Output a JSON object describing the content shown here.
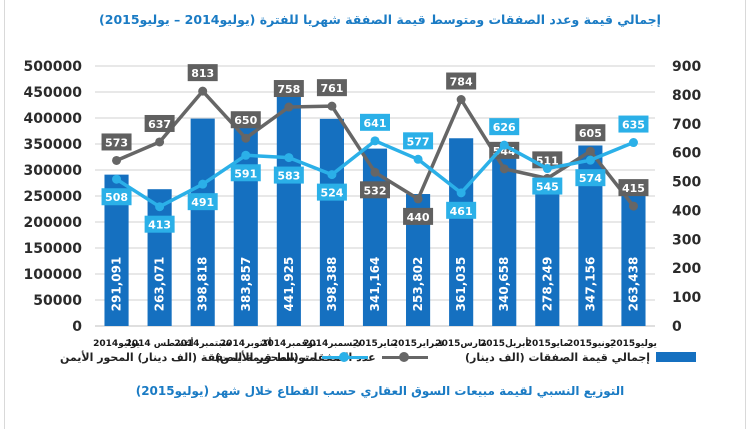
{
  "title": "إجمالي قيمة وعدد الصفقات ومتوسط قيمة الصفقة شهريا للفترة (يوليو2014 – يوليو2015)",
  "subtitle": "التوزيع النسبي لقيمة مبيعات السوق العقاري حسب القطاع خلال شهر (يوليو2015)",
  "colors": {
    "bar": "#1570c0",
    "line_count": "#666666",
    "line_avg": "#2bb0e8"
  },
  "chart_data": {
    "type": "bar",
    "categories": [
      "يوليو2014",
      "أغسطس 2014",
      "سبتمبر2014",
      "أكتوبر2014",
      "نوفمبر2014",
      "ديسمبر2014",
      "يناير2015",
      "فبراير2015",
      "مارس2015",
      "أبريل2015",
      "مايو2015",
      "يونيو2015",
      "يوليو2015"
    ],
    "series": [
      {
        "name": "إجمالي قيمة الصفقات (الف دينار)",
        "type": "bar",
        "axis": "left",
        "values": [
          291091,
          263071,
          398818,
          383857,
          441925,
          398388,
          341164,
          253802,
          361035,
          340658,
          278249,
          347156,
          263438
        ],
        "labels": [
          "291,091",
          "263,071",
          "398,818",
          "383,857",
          "441,925",
          "398,388",
          "341,164",
          "253,802",
          "361,035",
          "340,658",
          "278,249",
          "347,156",
          "263,438"
        ]
      },
      {
        "name": "عدد الصفقات (المحور الأيمن)",
        "type": "line",
        "axis": "right",
        "values": [
          573,
          637,
          813,
          650,
          758,
          761,
          532,
          440,
          784,
          544,
          511,
          605,
          415
        ]
      },
      {
        "name": "متوسط قيمة الصفقة (الف دينار) المحور الأيمن",
        "type": "line",
        "axis": "right",
        "values": [
          508,
          413,
          491,
          591,
          583,
          524,
          641,
          577,
          461,
          626,
          545,
          574,
          635
        ]
      }
    ],
    "left_axis": {
      "min": 0,
      "max": 500000,
      "step": 50000,
      "ticks": [
        "0",
        "50000",
        "100000",
        "150000",
        "200000",
        "250000",
        "300000",
        "350000",
        "400000",
        "450000",
        "500000"
      ]
    },
    "right_axis": {
      "min": 0,
      "max": 900,
      "step": 100,
      "ticks": [
        "0",
        "100",
        "200",
        "300",
        "400",
        "500",
        "600",
        "700",
        "800",
        "900"
      ]
    },
    "grid": true,
    "legend": "bottom"
  }
}
